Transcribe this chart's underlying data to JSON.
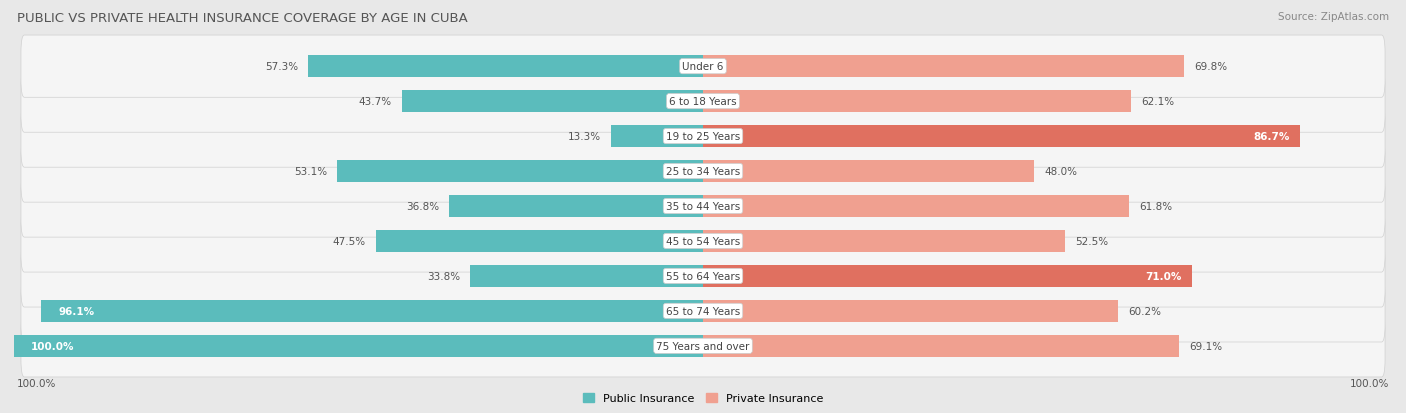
{
  "title": "PUBLIC VS PRIVATE HEALTH INSURANCE COVERAGE BY AGE IN CUBA",
  "source": "Source: ZipAtlas.com",
  "categories": [
    "Under 6",
    "6 to 18 Years",
    "19 to 25 Years",
    "25 to 34 Years",
    "35 to 44 Years",
    "45 to 54 Years",
    "55 to 64 Years",
    "65 to 74 Years",
    "75 Years and over"
  ],
  "public_values": [
    57.3,
    43.7,
    13.3,
    53.1,
    36.8,
    47.5,
    33.8,
    96.1,
    100.0
  ],
  "private_values": [
    69.8,
    62.1,
    86.7,
    48.0,
    61.8,
    52.5,
    71.0,
    60.2,
    69.1
  ],
  "public_color": "#5bbcbc",
  "private_color_dark": "#e07060",
  "private_color_light": "#f0a090",
  "bg_color": "#e8e8e8",
  "bar_bg_color": "#f5f5f5",
  "title_color": "#555555",
  "label_color": "#555555",
  "legend_public": "Public Insurance",
  "legend_private": "Private Insurance",
  "x_axis_label": "100.0%",
  "max_val": 100.0
}
